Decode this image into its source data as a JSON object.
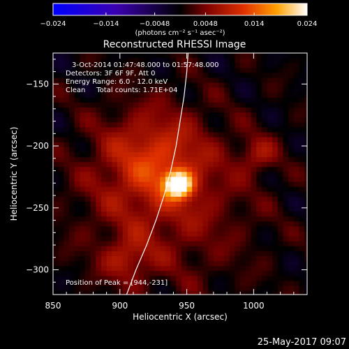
{
  "chart_data": {
    "type": "heatmap",
    "title": "Reconstructed RHESSI Image",
    "xlabel": "Heliocentric X (arcsec)",
    "ylabel": "Heliocentric Y (arcsec)",
    "xlim": [
      850,
      1040
    ],
    "ylim": [
      -320,
      -125
    ],
    "x_ticks": [
      850,
      900,
      950,
      1000
    ],
    "y_ticks": [
      -150,
      -200,
      -250,
      -300
    ],
    "x_tick_labels": [
      "850",
      "900",
      "950",
      "1000"
    ],
    "y_tick_labels": [
      "−150",
      "−200",
      "−250",
      "−300"
    ],
    "colorbar": {
      "range": [
        -0.024,
        0.024
      ],
      "ticks": [
        -0.024,
        -0.014,
        -0.0048,
        0.0048,
        0.014,
        0.024
      ],
      "tick_labels": [
        "−0.024",
        "−0.014",
        "−0.0048",
        "0.0048",
        "0.014",
        "0.024"
      ],
      "unit_label": "(photons cm⁻² s⁻¹ asec⁻²)"
    },
    "annotations": [
      "3-Oct-2014 01:47:48.000 to 01:57:48.000",
      "Detectors: 3F 6F 9F, Att 0",
      "Energy Range: 6.0 - 12.0 keV",
      "Clean     Total counts: 1.71E+04"
    ],
    "peak_label": "Position of Peak = [944,-231]",
    "peak": {
      "x": 944,
      "y": -231,
      "value": 0.024
    },
    "limb_curve": [
      [
        905,
        -320
      ],
      [
        912,
        -300
      ],
      [
        920,
        -280
      ],
      [
        927,
        -260
      ],
      [
        933,
        -240
      ],
      [
        938,
        -220
      ],
      [
        942,
        -200
      ],
      [
        945,
        -180
      ],
      [
        948,
        -160
      ],
      [
        950,
        -140
      ],
      [
        951,
        -125
      ]
    ],
    "sources": [
      {
        "x": 944,
        "y": -231,
        "amplitude": 1.0,
        "sigma": 7
      },
      {
        "x": 925,
        "y": -210,
        "amplitude": 0.35,
        "sigma": 28
      },
      {
        "x": 1003,
        "y": -207,
        "amplitude": 0.25,
        "sigma": 10
      },
      {
        "x": 905,
        "y": -292,
        "amplitude": 0.25,
        "sigma": 12
      },
      {
        "x": 935,
        "y": -250,
        "amplitude": 0.22,
        "sigma": 45
      }
    ]
  },
  "footer": {
    "timestamp": "25-May-2017 09:07"
  }
}
